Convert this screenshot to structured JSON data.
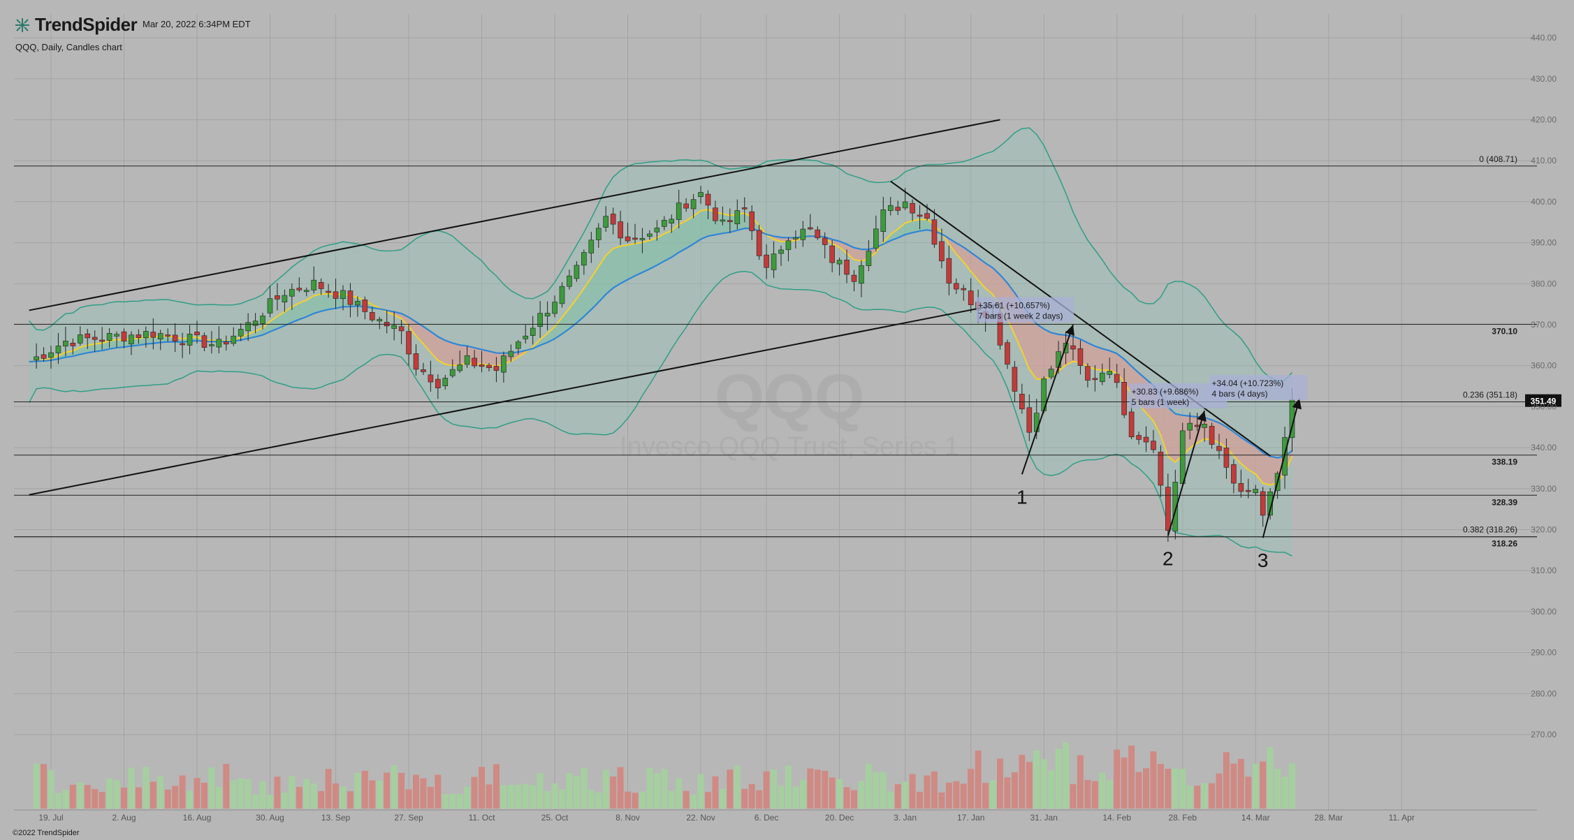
{
  "header": {
    "brand": "TrendSpider",
    "timestamp": "Mar 20, 2022 6:34PM EDT",
    "subtitle": "QQQ, Daily, Candles chart",
    "copyright": "©2022 TrendSpider",
    "watermark_symbol": "QQQ",
    "watermark_name": "Invesco QQQ Trust, Series 1"
  },
  "colors": {
    "background": "#b7b7b7",
    "up_candle": "#3e9a3e",
    "down_candle": "#c23b3b",
    "ema_fast": "#f3d22b",
    "ema_slow": "#2f86d6",
    "bollinger": "#2f9e86",
    "volume_up": "#a6cfa0",
    "volume_down": "#cf8a84",
    "price_badge": "#111111"
  },
  "chart_data": {
    "type": "candlestick",
    "symbol": "QQQ",
    "interval": "Daily",
    "ylim": [
      264,
      446
    ],
    "y_ticks": [
      270,
      280,
      290,
      300,
      310,
      320,
      330,
      340,
      350,
      360,
      370,
      380,
      390,
      400,
      410,
      420,
      430,
      440
    ],
    "x_ticks": [
      {
        "label": "19. Jul",
        "t": 0
      },
      {
        "label": "2. Aug",
        "t": 10
      },
      {
        "label": "16. Aug",
        "t": 20
      },
      {
        "label": "30. Aug",
        "t": 30
      },
      {
        "label": "13. Sep",
        "t": 39
      },
      {
        "label": "27. Sep",
        "t": 49
      },
      {
        "label": "11. Oct",
        "t": 59
      },
      {
        "label": "25. Oct",
        "t": 69
      },
      {
        "label": "8. Nov",
        "t": 79
      },
      {
        "label": "22. Nov",
        "t": 89
      },
      {
        "label": "6. Dec",
        "t": 98
      },
      {
        "label": "20. Dec",
        "t": 108
      },
      {
        "label": "3. Jan",
        "t": 117
      },
      {
        "label": "17. Jan",
        "t": 126
      },
      {
        "label": "31. Jan",
        "t": 136
      },
      {
        "label": "14. Feb",
        "t": 146
      },
      {
        "label": "28. Feb",
        "t": 155
      },
      {
        "label": "14. Mar",
        "t": 165
      },
      {
        "label": "28. Mar",
        "t": 175
      },
      {
        "label": "11. Apr",
        "t": 185
      }
    ],
    "last_price": "351.49",
    "anchors": [
      {
        "t": -3,
        "c": 361
      },
      {
        "t": 2,
        "c": 366
      },
      {
        "t": 8,
        "c": 367
      },
      {
        "t": 14,
        "c": 368
      },
      {
        "t": 20,
        "c": 366
      },
      {
        "t": 23,
        "c": 365
      },
      {
        "t": 27,
        "c": 370
      },
      {
        "t": 32,
        "c": 378
      },
      {
        "t": 36,
        "c": 380
      },
      {
        "t": 40,
        "c": 377
      },
      {
        "t": 44,
        "c": 372
      },
      {
        "t": 48,
        "c": 368
      },
      {
        "t": 50,
        "c": 360
      },
      {
        "t": 53,
        "c": 356
      },
      {
        "t": 57,
        "c": 361
      },
      {
        "t": 61,
        "c": 359
      },
      {
        "t": 64,
        "c": 366
      },
      {
        "t": 68,
        "c": 374
      },
      {
        "t": 72,
        "c": 383
      },
      {
        "t": 76,
        "c": 396
      },
      {
        "t": 79,
        "c": 391
      },
      {
        "t": 83,
        "c": 393
      },
      {
        "t": 87,
        "c": 400
      },
      {
        "t": 89,
        "c": 402
      },
      {
        "t": 92,
        "c": 394
      },
      {
        "t": 95,
        "c": 398
      },
      {
        "t": 98,
        "c": 383
      },
      {
        "t": 101,
        "c": 392
      },
      {
        "t": 104,
        "c": 393
      },
      {
        "t": 107,
        "c": 386
      },
      {
        "t": 110,
        "c": 382
      },
      {
        "t": 114,
        "c": 397
      },
      {
        "t": 117,
        "c": 400
      },
      {
        "t": 120,
        "c": 396
      },
      {
        "t": 123,
        "c": 381
      },
      {
        "t": 126,
        "c": 376
      },
      {
        "t": 129,
        "c": 372
      },
      {
        "t": 132,
        "c": 355
      },
      {
        "t": 134,
        "c": 344
      },
      {
        "t": 136,
        "c": 356
      },
      {
        "t": 139,
        "c": 366
      },
      {
        "t": 142,
        "c": 356
      },
      {
        "t": 145,
        "c": 360
      },
      {
        "t": 148,
        "c": 344
      },
      {
        "t": 151,
        "c": 341
      },
      {
        "t": 153,
        "c": 320
      },
      {
        "t": 155,
        "c": 344
      },
      {
        "t": 158,
        "c": 346
      },
      {
        "t": 160,
        "c": 338
      },
      {
        "t": 163,
        "c": 328
      },
      {
        "t": 165,
        "c": 330
      },
      {
        "t": 166,
        "c": 322
      },
      {
        "t": 168,
        "c": 334
      },
      {
        "t": 170,
        "c": 351
      }
    ],
    "horizontal_levels": [
      {
        "value": 408.71,
        "label": "0 (408.71)"
      },
      {
        "value": 370.1,
        "label": "370.10"
      },
      {
        "value": 351.18,
        "label": "0.236 (351.18)"
      },
      {
        "value": 338.19,
        "label": "338.19"
      },
      {
        "value": 328.39,
        "label": "328.39"
      },
      {
        "value": 318.26,
        "label": "318.26"
      },
      {
        "value": 318.26,
        "label": "0.382 (318.26)"
      }
    ],
    "trendlines": [
      {
        "from": [
          -3,
          373.5
        ],
        "to": [
          130,
          420
        ]
      },
      {
        "from": [
          -3,
          328.5
        ],
        "to": [
          130,
          375
        ]
      },
      {
        "from": [
          115,
          405
        ],
        "to": [
          167,
          338
        ]
      }
    ],
    "swing_labels": [
      {
        "label": "1",
        "t": 133,
        "value": 333.5
      },
      {
        "label": "2",
        "t": 153,
        "value": 318.5
      },
      {
        "label": "3",
        "t": 166,
        "value": 318
      }
    ],
    "measure_callouts": [
      {
        "line1": "+35.61 (+10.657%)",
        "line2": "7 bars (1 week 2 days)",
        "from": [
          133,
          333.5
        ],
        "to": [
          140,
          370
        ],
        "label_t": 127,
        "label_v": 374
      },
      {
        "line1": "+30.83 (+9.686%)",
        "line2": "5 bars (1 week)",
        "from": [
          153,
          318.5
        ],
        "to": [
          158,
          349
        ],
        "label_t": 148,
        "label_v": 353
      },
      {
        "line1": "+34.04 (+10.723%)",
        "line2": "4 bars (4 days)",
        "from": [
          166,
          318
        ],
        "to": [
          171,
          352
        ],
        "label_t": 159,
        "label_v": 355
      }
    ],
    "volume": {
      "baseline_value": 264,
      "max_value": 298
    }
  }
}
